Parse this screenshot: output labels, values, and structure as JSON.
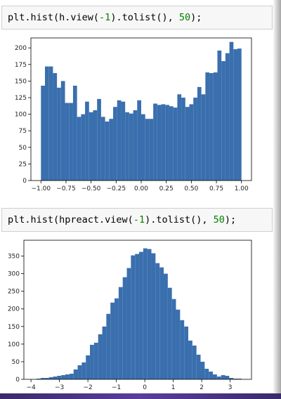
{
  "cells": [
    {
      "code_prefix": "plt.hist(h.view(",
      "code_arg": "-1",
      "code_mid": ").tolist(), ",
      "code_bins": "50",
      "code_suffix": ");"
    },
    {
      "code_prefix": "plt.hist(hpreact.view(",
      "code_arg": "-1",
      "code_mid": ").tolist(), ",
      "code_bins": "50",
      "code_suffix": ");"
    }
  ],
  "colors": {
    "bar": "#3a6fae",
    "axis": "#000000",
    "code_number": "#008000"
  },
  "chart_data": [
    {
      "type": "bar",
      "title": "",
      "xlabel": "",
      "ylabel": "",
      "xlim": [
        -1.1,
        1.1
      ],
      "ylim": [
        0,
        215
      ],
      "bin_start": -1.0,
      "bin_width": 0.04,
      "x_ticks": [
        -1.0,
        -0.75,
        -0.5,
        -0.25,
        0.0,
        0.25,
        0.5,
        0.75,
        1.0
      ],
      "x_tick_labels": [
        "−1.00",
        "−0.75",
        "−0.50",
        "−0.25",
        "0.00",
        "0.25",
        "0.50",
        "0.75",
        "1.00"
      ],
      "y_ticks": [
        0,
        25,
        50,
        75,
        100,
        125,
        150,
        175,
        200
      ],
      "y_tick_labels": [
        "0",
        "25",
        "50",
        "75",
        "100",
        "125",
        "150",
        "175",
        "200"
      ],
      "values": [
        143,
        172,
        172,
        162,
        140,
        150,
        117,
        117,
        143,
        96,
        100,
        119,
        103,
        106,
        123,
        96,
        89,
        93,
        111,
        121,
        119,
        103,
        101,
        106,
        121,
        100,
        93,
        93,
        116,
        114,
        115,
        114,
        112,
        110,
        130,
        125,
        111,
        115,
        125,
        141,
        130,
        163,
        162,
        163,
        196,
        180,
        192,
        209,
        198,
        199
      ]
    },
    {
      "type": "bar",
      "title": "",
      "xlabel": "",
      "ylabel": "",
      "xlim": [
        -4.25,
        3.75
      ],
      "ylim": [
        0,
        395
      ],
      "bin_start": -3.8,
      "bin_width": 0.144,
      "x_ticks": [
        -4,
        -3,
        -2,
        -1,
        0,
        1,
        2,
        3
      ],
      "x_tick_labels": [
        "−4",
        "−3",
        "−2",
        "−1",
        "0",
        "1",
        "2",
        "3"
      ],
      "y_ticks": [
        0,
        50,
        100,
        150,
        200,
        250,
        300,
        350
      ],
      "y_tick_labels": [
        "0",
        "50",
        "100",
        "150",
        "200",
        "250",
        "300",
        "350"
      ],
      "values": [
        2,
        4,
        4,
        6,
        8,
        10,
        12,
        14,
        16,
        28,
        40,
        48,
        68,
        98,
        104,
        128,
        150,
        186,
        218,
        230,
        262,
        290,
        316,
        352,
        356,
        362,
        372,
        370,
        358,
        330,
        318,
        300,
        260,
        228,
        198,
        168,
        150,
        110,
        96,
        70,
        50,
        30,
        22,
        14,
        8,
        12,
        10,
        4,
        2,
        2
      ]
    }
  ]
}
